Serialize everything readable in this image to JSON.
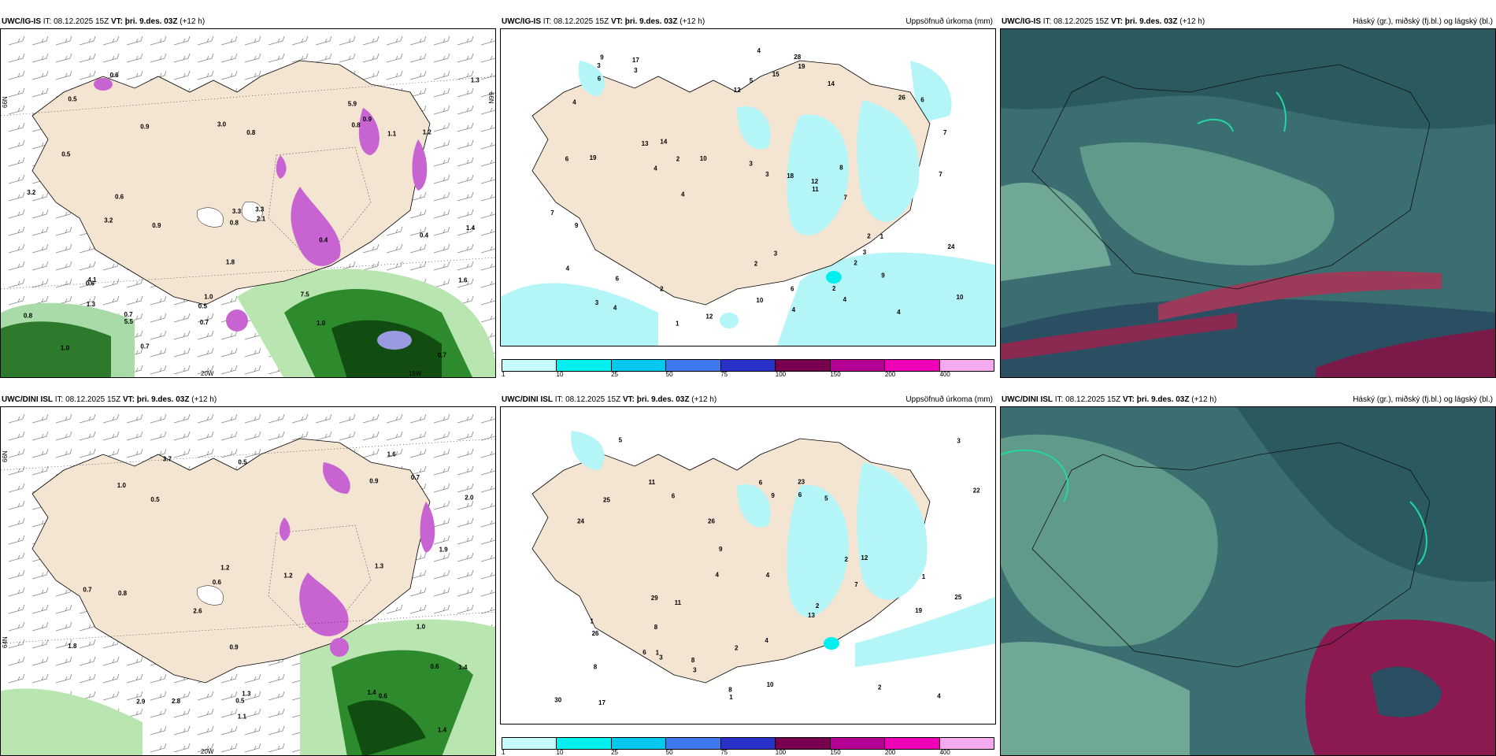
{
  "row1": {
    "model": "UWC/IG-IS",
    "it_label": "IT:",
    "it_value": "08.12.2025 15Z",
    "vt_label": "VT:",
    "vt_value": "þri. 9.des. 03Z",
    "lead": "(+12 h)"
  },
  "row2": {
    "model": "UWC/DINI ISL",
    "it_label": "IT:",
    "it_value": "08.12.2025 15Z",
    "vt_label": "VT:",
    "vt_value": "þri. 9.des. 03Z",
    "lead": "(+12 h)"
  },
  "precip_title": "Uppsöfnuð úrkoma (mm)",
  "cloud_title": "Háský (gr.), miðský (fj.bl.) og lágský (bl.)",
  "colorbar": {
    "ticks": [
      "1",
      "10",
      "25",
      "50",
      "75",
      "100",
      "150",
      "200",
      "400"
    ],
    "colors": [
      "#c8fbfb",
      "#00f0f0",
      "#00c8f0",
      "#3c78f0",
      "#2832c8",
      "#780050",
      "#b40096",
      "#f000b4",
      "#f5aaf0"
    ]
  },
  "lon_labels": {
    "w20": "20W",
    "w15": "15W"
  },
  "lat_labels": {
    "n66": "66N",
    "n64": "64N"
  },
  "panel1_values": [
    "0.6",
    "0.5",
    "1.4",
    "0.5",
    "0.4",
    "0.7",
    "0.8",
    "0.9",
    "0.4",
    "0.7",
    "0.8",
    "0.6",
    "1.2",
    "0.7",
    "1.0",
    "1.1",
    "1.0",
    "1.3",
    "0.8",
    "0.9",
    "0.7",
    "0.9",
    "0.5",
    "0.8",
    "2.1",
    "3.3",
    "3.2",
    "3.3",
    "5.9",
    "5.5",
    "7.5",
    "3.2",
    "3.0",
    "4.1",
    "0.6",
    "1.6",
    "1.8",
    "1.0",
    "1.3"
  ],
  "panel4_values": [
    "1.1",
    "0.5",
    "0.9",
    "0.6",
    "1.3",
    "0.5",
    "0.7",
    "0.6",
    "1.0",
    "0.5",
    "1.3",
    "0.9",
    "1.6",
    "1.4",
    "1.2",
    "1.4",
    "0.7",
    "1.0",
    "1.9",
    "1.8",
    "2.0",
    "0.8",
    "1.4",
    "2.8",
    "0.6",
    "3.7",
    "2.6",
    "1.2",
    "2.9"
  ],
  "panel2_values": [
    "10",
    "1",
    "19",
    "10",
    "4",
    "2",
    "1",
    "6",
    "12",
    "9",
    "10",
    "11",
    "6",
    "7",
    "4",
    "3",
    "4",
    "2",
    "3",
    "3",
    "6",
    "6",
    "15",
    "4",
    "19",
    "14",
    "26",
    "17",
    "14",
    "12",
    "3",
    "4",
    "2",
    "12",
    "2",
    "2",
    "3",
    "6",
    "13",
    "9",
    "3",
    "4",
    "18",
    "4",
    "7",
    "24",
    "4",
    "7",
    "3",
    "4",
    "28",
    "2",
    "5",
    "7",
    "8",
    "9"
  ],
  "panel5_values": [
    "13",
    "25",
    "26",
    "4",
    "2",
    "2",
    "1",
    "1",
    "4",
    "6",
    "7",
    "9",
    "2",
    "4",
    "8",
    "3",
    "3",
    "1",
    "11",
    "9",
    "19",
    "1",
    "5",
    "24",
    "3",
    "23",
    "26",
    "30",
    "22",
    "17",
    "11",
    "12",
    "2",
    "8",
    "25",
    "29",
    "5",
    "10",
    "6",
    "4",
    "6",
    "8",
    "8",
    "6"
  ]
}
